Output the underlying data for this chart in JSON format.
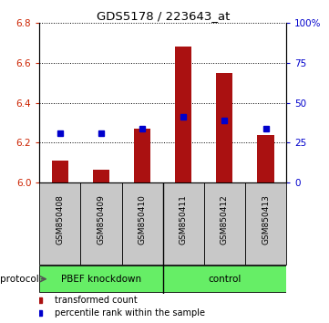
{
  "title": "GDS5178 / 223643_at",
  "samples": [
    "GSM850408",
    "GSM850409",
    "GSM850410",
    "GSM850411",
    "GSM850412",
    "GSM850413"
  ],
  "transformed_counts": [
    6.11,
    6.065,
    6.27,
    6.68,
    6.55,
    6.24
  ],
  "percentile_ranks": [
    31,
    31,
    34,
    41,
    39,
    34
  ],
  "ylim_left": [
    6.0,
    6.8
  ],
  "yticks_left": [
    6.0,
    6.2,
    6.4,
    6.6,
    6.8
  ],
  "ylim_right": [
    0,
    100
  ],
  "yticks_right": [
    0,
    25,
    50,
    75,
    100
  ],
  "yticklabels_right": [
    "0",
    "25",
    "50",
    "75",
    "100%"
  ],
  "bar_color": "#AA1111",
  "dot_color": "#0000CC",
  "ylabel_left_color": "#CC2200",
  "ylabel_right_color": "#0000CC",
  "group_label_1": "PBEF knockdown",
  "group_label_2": "control",
  "protocol_label": "protocol",
  "legend_bar_label": "transformed count",
  "legend_dot_label": "percentile rank within the sample",
  "base_value": 6.0,
  "bar_width": 0.4,
  "sample_bg_color": "#C8C8C8",
  "green_color": "#66EE66"
}
